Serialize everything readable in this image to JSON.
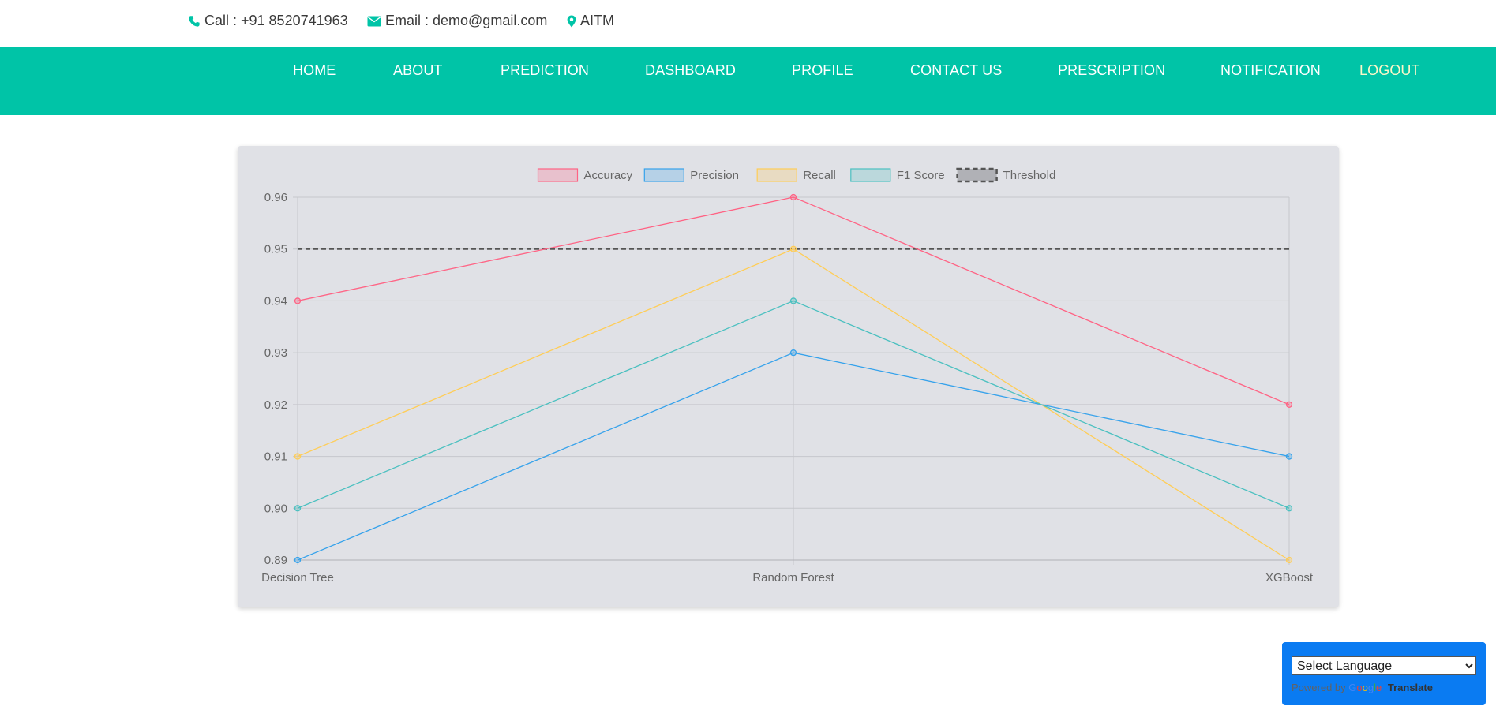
{
  "contact": {
    "call": "Call : +91 8520741963",
    "email": "Email : demo@gmail.com",
    "location": "AITM",
    "icons": [
      "phone-icon",
      "envelope-icon",
      "map-marker-icon"
    ],
    "accent": "#00c4a7"
  },
  "nav": {
    "background": "#00c4a7",
    "items": [
      {
        "label": "HOME"
      },
      {
        "label": "ABOUT"
      },
      {
        "label": "PREDICTION"
      },
      {
        "label": "DASHBOARD"
      },
      {
        "label": "PROFILE"
      },
      {
        "label": "CONTACT US"
      },
      {
        "label": "PRESCRIPTION"
      },
      {
        "label": "NOTIFICATION"
      },
      {
        "label": "LOGOUT"
      }
    ]
  },
  "chart_data": {
    "type": "line",
    "categories": [
      "Decision Tree",
      "Random Forest",
      "XGBoost"
    ],
    "series": [
      {
        "name": "Accuracy",
        "values": [
          0.94,
          0.96,
          0.92
        ],
        "color": "#ff6384"
      },
      {
        "name": "Precision",
        "values": [
          0.89,
          0.93,
          0.91
        ],
        "color": "#36a2eb"
      },
      {
        "name": "Recall",
        "values": [
          0.91,
          0.95,
          0.89
        ],
        "color": "#ffcd56"
      },
      {
        "name": "F1 Score",
        "values": [
          0.9,
          0.94,
          0.9
        ],
        "color": "#4bc0c0"
      },
      {
        "name": "Threshold",
        "values": [
          0.95,
          0.95,
          0.95
        ],
        "color": "#555555",
        "dashed": true
      }
    ],
    "yticks": [
      "0.96",
      "0.95",
      "0.94",
      "0.93",
      "0.92",
      "0.91",
      "0.90",
      "0.89"
    ],
    "ylim": [
      0.89,
      0.96
    ],
    "grid": true,
    "legend_position": "top"
  },
  "translate": {
    "select_placeholder": "Select Language",
    "powered_by": "Powered by",
    "google": [
      "G",
      "o",
      "o",
      "g",
      "l",
      "e"
    ],
    "translate_label": "Translate"
  }
}
